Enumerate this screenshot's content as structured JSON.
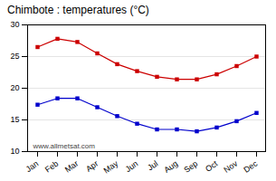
{
  "chart_data": {
    "type": "line",
    "title": "Chimbote : temperatures (°C)",
    "categories": [
      "Jan",
      "Feb",
      "Mar",
      "Apr",
      "May",
      "Jun",
      "Jul",
      "Aug",
      "Sep",
      "Oct",
      "Nov",
      "Dec"
    ],
    "series": [
      {
        "color": "#cc0000",
        "marker": "square",
        "values": [
          26.5,
          27.8,
          27.3,
          25.5,
          23.8,
          22.7,
          21.8,
          21.4,
          21.4,
          22.2,
          23.5,
          25.0
        ]
      },
      {
        "color": "#0000cc",
        "marker": "square",
        "values": [
          17.4,
          18.4,
          18.4,
          17.0,
          15.6,
          14.4,
          13.5,
          13.5,
          13.2,
          13.8,
          14.8,
          16.1
        ]
      }
    ],
    "ylim": [
      10,
      30
    ],
    "yticks": [
      10,
      15,
      20,
      25,
      30
    ],
    "grid": true,
    "annotations": [
      {
        "text": "www.allmetsat.com"
      }
    ]
  }
}
